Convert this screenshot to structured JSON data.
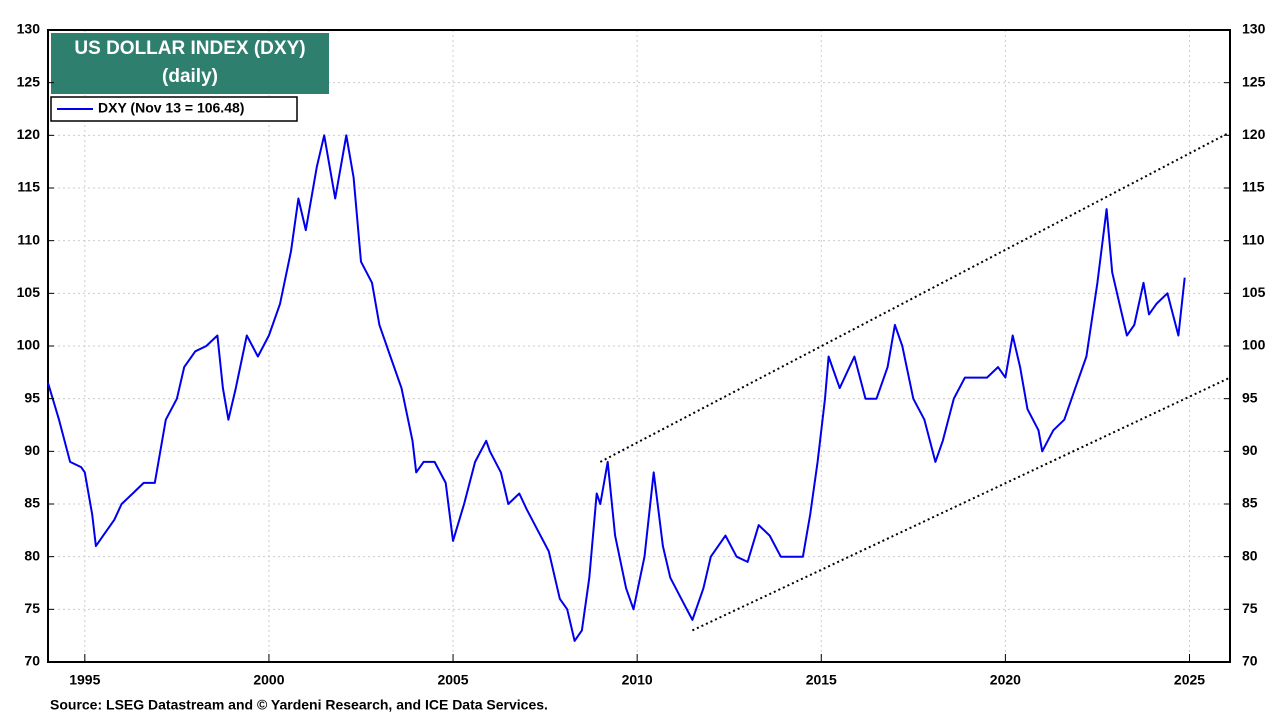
{
  "chart_data": {
    "type": "line",
    "title": "US DOLLAR INDEX (DXY)",
    "subtitle": "(daily)",
    "source": "Source: LSEG Datastream and © Yardeni Research, and ICE Data Services.",
    "x": [
      1994.0,
      1994.3,
      1994.6,
      1994.9,
      1995.0,
      1995.2,
      1995.3,
      1995.5,
      1995.8,
      1996.0,
      1996.3,
      1996.6,
      1996.9,
      1997.2,
      1997.5,
      1997.7,
      1998.0,
      1998.3,
      1998.6,
      1998.75,
      1998.9,
      1999.1,
      1999.4,
      1999.7,
      2000.0,
      2000.3,
      2000.6,
      2000.8,
      2001.0,
      2001.3,
      2001.5,
      2001.8,
      2002.0,
      2002.1,
      2002.3,
      2002.5,
      2002.8,
      2003.0,
      2003.3,
      2003.6,
      2003.9,
      2004.0,
      2004.2,
      2004.5,
      2004.8,
      2005.0,
      2005.3,
      2005.6,
      2005.9,
      2006.0,
      2006.3,
      2006.5,
      2006.8,
      2007.0,
      2007.3,
      2007.6,
      2007.9,
      2008.1,
      2008.3,
      2008.5,
      2008.7,
      2008.9,
      2009.0,
      2009.2,
      2009.4,
      2009.7,
      2009.9,
      2010.2,
      2010.45,
      2010.7,
      2010.9,
      2011.2,
      2011.5,
      2011.8,
      2012.0,
      2012.4,
      2012.7,
      2013.0,
      2013.3,
      2013.6,
      2013.9,
      2014.2,
      2014.5,
      2014.7,
      2014.9,
      2015.1,
      2015.2,
      2015.5,
      2015.9,
      2016.2,
      2016.5,
      2016.8,
      2017.0,
      2017.2,
      2017.5,
      2017.8,
      2018.1,
      2018.3,
      2018.6,
      2018.9,
      2019.2,
      2019.5,
      2019.8,
      2020.0,
      2020.2,
      2020.4,
      2020.6,
      2020.9,
      2021.0,
      2021.3,
      2021.6,
      2021.9,
      2022.2,
      2022.5,
      2022.75,
      2022.9,
      2023.1,
      2023.3,
      2023.5,
      2023.75,
      2023.9,
      2024.1,
      2024.4,
      2024.7,
      2024.87
    ],
    "series": [
      {
        "name": "DXY (Nov 13 = 106.48)",
        "color": "#0000ee",
        "values": [
          96.5,
          93,
          89,
          88.5,
          88,
          84,
          81,
          82,
          83.5,
          85,
          86,
          87,
          87,
          93,
          95,
          98,
          99.5,
          100,
          101,
          96,
          93,
          96,
          101,
          99,
          101,
          104,
          109,
          114,
          111,
          117,
          120,
          114,
          118,
          120,
          116,
          108,
          106,
          102,
          99,
          96,
          91,
          88,
          89,
          89,
          87,
          81.5,
          85,
          89,
          91,
          90,
          88,
          85,
          86,
          84.5,
          82.5,
          80.5,
          76,
          75,
          72,
          73,
          78,
          86,
          85,
          89,
          82,
          77,
          75,
          80,
          88,
          81,
          78,
          76,
          74,
          77,
          80,
          82,
          80,
          79.5,
          83,
          82,
          80,
          80,
          80,
          84,
          89,
          95,
          99,
          96,
          99,
          95,
          95,
          98,
          102,
          100,
          95,
          93,
          89,
          91,
          95,
          97,
          97,
          97,
          98,
          97,
          101,
          98,
          94,
          92,
          90,
          92,
          93,
          96,
          99,
          106,
          113,
          107,
          104,
          101,
          102,
          106,
          103,
          104,
          105,
          101,
          106.48
        ]
      }
    ],
    "trendlines": [
      {
        "x": [
          2009.0,
          2026.1
        ],
        "values": [
          89,
          120.3
        ]
      },
      {
        "x": [
          2011.5,
          2026.1
        ],
        "values": [
          73,
          97
        ]
      }
    ],
    "xlim": [
      1994,
      2026.1
    ],
    "xticks": [
      1995,
      2000,
      2005,
      2010,
      2015,
      2020,
      2025
    ],
    "ylim": [
      70,
      130
    ],
    "yticks": [
      70,
      75,
      80,
      85,
      90,
      95,
      100,
      105,
      110,
      115,
      120,
      125,
      130
    ],
    "grid": true
  }
}
